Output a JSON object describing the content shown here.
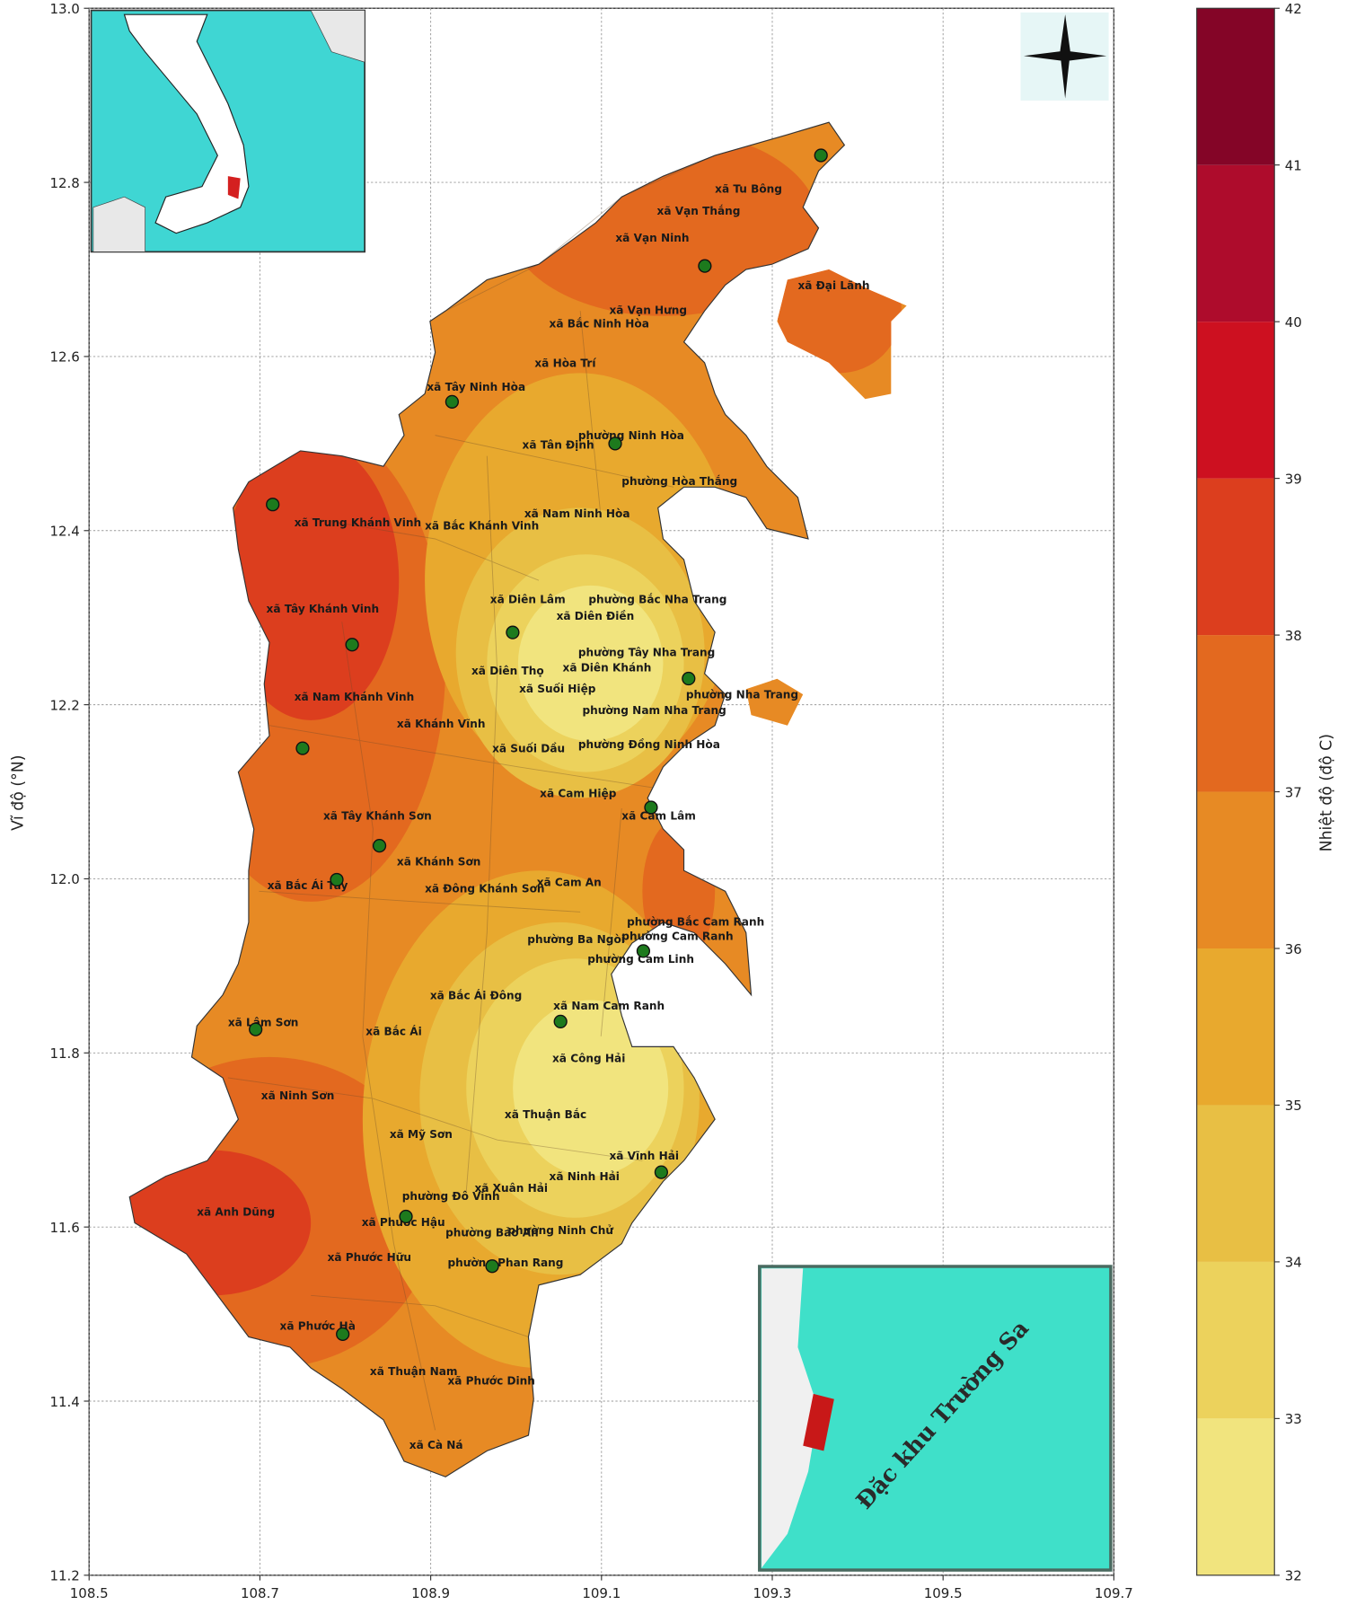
{
  "map": {
    "xlim": [
      108.5,
      109.7
    ],
    "ylim": [
      11.2,
      13.0
    ],
    "xticks": [
      108.5,
      108.7,
      108.9,
      109.1,
      109.3,
      109.5,
      109.7
    ],
    "yticks": [
      11.2,
      11.4,
      11.6,
      11.8,
      {
        "value": 12,
        "label": "12.0"
      },
      12.2,
      12.4,
      12.6,
      12.8,
      {
        "value": 13,
        "label": "13.0"
      }
    ],
    "grid": true,
    "ylabel": "Vĩ độ (°N)",
    "colorbar": {
      "label": "Nhiệt độ (độ C)",
      "ticks": [
        32,
        33,
        34,
        35,
        36,
        37,
        38,
        39,
        40,
        41,
        42
      ],
      "colors": [
        "#f1e47e",
        "#ecd25c",
        "#e8bf44",
        "#e8a92e",
        "#e78a24",
        "#e3691f",
        "#dc3e1e",
        "#cd1020",
        "#ae0c2c",
        "#840527"
      ]
    },
    "stations": {
      "color": "#1d7a1d",
      "lon": [
        109.357,
        109.221,
        108.925,
        109.116,
        108.715,
        108.996,
        108.808,
        109.202,
        108.75,
        109.158,
        108.84,
        108.79,
        109.149,
        109.052,
        108.695,
        109.17,
        108.871,
        108.972,
        108.797
      ],
      "lat": [
        12.831,
        12.704,
        12.548,
        12.5,
        12.43,
        12.283,
        12.269,
        12.23,
        12.15,
        12.082,
        12.038,
        11.999,
        11.917,
        11.836,
        11.827,
        11.663,
        11.612,
        11.555,
        11.477
      ]
    },
    "labels": [
      "xã Tu Bông",
      "xã Vạn Thắng",
      "xã Vạn Ninh",
      "xã Đại Lãnh",
      "xã Vạn Hưng",
      "xã Bắc Ninh Hòa",
      "xã Hòa Trí",
      "xã Tây Ninh Hòa",
      "phường Ninh Hòa",
      "xã Tân Định",
      "phường Hòa Thắng",
      "xã Nam Ninh Hòa",
      "xã Trung Khánh Vinh",
      "xã Bắc Khánh Vinh",
      "xã Diên Lâm",
      "phường Bắc Nha Trang",
      "xã Diên Điền",
      "phường Tây Nha Trang",
      "xã Diên Khánh",
      "xã Diên Thọ",
      "xã Suối Hiệp",
      "phường Nha Trang",
      "phường Nam Nha Trang",
      "xã Tây Khánh Vinh",
      "xã Nam Khánh Vinh",
      "xã Khánh Vĩnh",
      "xã Suối Dầu",
      "phường Đồng Ninh Hòa",
      "xã Cam Hiệp",
      "xã Cam Lâm",
      "xã Tây Khánh Sơn",
      "xã Khánh Sơn",
      "xã Bắc Ái Tây",
      "xã Đông Khánh Sơn",
      "xã Cam An",
      "phường Bắc Cam Ranh",
      "phường Ba Ngòi",
      "phường Cam Ranh",
      "phường Cam Linh",
      "xã Bắc Ái Đông",
      "xã Nam Cam Ranh",
      "xã Lâm Sơn",
      "xã Bắc Ái",
      "xã Công Hải",
      "xã Ninh Sơn",
      "xã Thuận Bắc",
      "xã Mỹ Sơn",
      "xã Vĩnh Hải",
      "xã Ninh Hải",
      "xã Xuân Hải",
      "phường Đô Vinh",
      "xã Anh Dũng",
      "xã Phước Hậu",
      "phường Bảo An",
      "phường Ninh Chử",
      "xã Phước Hữu",
      "phường Phan Rang",
      "xã Phước Hà",
      "xã Thuận Nam",
      "xã Phước Dinh",
      "xã Cà Ná"
    ],
    "inset_label": "Đặc khu Trường Sa"
  }
}
